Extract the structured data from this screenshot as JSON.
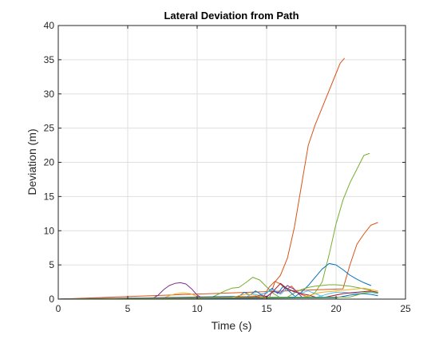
{
  "chart_data": {
    "type": "line",
    "title": "Lateral Deviation from Path",
    "xlabel": "Time (s)",
    "ylabel": "Deviation (m)",
    "xlim": [
      0,
      25
    ],
    "ylim": [
      0,
      40
    ],
    "xticks": [
      0,
      5,
      10,
      15,
      20,
      25
    ],
    "yticks": [
      0,
      5,
      10,
      15,
      20,
      25,
      30,
      35,
      40
    ],
    "xtick_labels": [
      "0",
      "5",
      "10",
      "15",
      "20",
      "25"
    ],
    "ytick_labels": [
      "0",
      "5",
      "10",
      "15",
      "20",
      "25",
      "30",
      "35",
      "40"
    ],
    "grid": true,
    "legend": "none",
    "series": [
      {
        "color": "#D95319",
        "x": [
          0,
          15.2,
          15.6,
          16.0,
          16.5,
          17.0,
          17.5,
          18.0,
          18.5,
          19.0,
          19.5,
          20.0,
          20.3,
          20.6
        ],
        "y": [
          0,
          0.2,
          2.5,
          3.5,
          6.0,
          10.5,
          16.5,
          22.5,
          25.5,
          28.0,
          30.5,
          33.0,
          34.5,
          35.2
        ]
      },
      {
        "color": "#77AC30",
        "x": [
          0,
          18.0,
          18.5,
          19.0,
          19.5,
          20.0,
          20.5,
          21.0,
          21.5,
          22.0,
          22.4
        ],
        "y": [
          0,
          0.3,
          1.0,
          2.5,
          6.5,
          11.0,
          14.5,
          17.0,
          19.0,
          21.0,
          21.3
        ]
      },
      {
        "color": "#D95319",
        "x": [
          0,
          20.5,
          21.0,
          21.5,
          22.0,
          22.5,
          23.0
        ],
        "y": [
          0,
          1.5,
          5.0,
          8.0,
          9.5,
          10.8,
          11.2
        ]
      },
      {
        "color": "#0072BD",
        "x": [
          0,
          17.0,
          17.5,
          18.0,
          18.5,
          19.0,
          19.5,
          20.0,
          20.5,
          21.0,
          21.5,
          22.0,
          22.5
        ],
        "y": [
          0,
          0.3,
          1.0,
          2.0,
          3.2,
          4.4,
          5.2,
          5.0,
          4.3,
          3.5,
          2.9,
          2.4,
          2.0
        ]
      },
      {
        "color": "#7E2F8E",
        "x": [
          0,
          6.8,
          7.2,
          7.6,
          8.0,
          8.4,
          8.8,
          9.2,
          9.6,
          10.0,
          10.4
        ],
        "y": [
          0,
          0.1,
          0.6,
          1.4,
          2.0,
          2.3,
          2.4,
          2.2,
          1.5,
          0.6,
          0.1
        ]
      },
      {
        "color": "#77AC30",
        "x": [
          0,
          11.0,
          11.5,
          12.0,
          12.5,
          13.0,
          13.5,
          14.0,
          14.5,
          15.0,
          15.5,
          16.0
        ],
        "y": [
          0,
          0.2,
          0.7,
          1.2,
          1.6,
          1.7,
          2.4,
          3.2,
          2.8,
          1.8,
          0.8,
          0.2
        ]
      },
      {
        "color": "#EDB120",
        "x": [
          0,
          7.5,
          8.0,
          8.5,
          9.0,
          9.5,
          10.0,
          10.5
        ],
        "y": [
          0,
          0.1,
          0.5,
          0.8,
          0.9,
          0.8,
          0.4,
          0.1
        ]
      },
      {
        "color": "#77AC30",
        "x": [
          0,
          16.5,
          17.0,
          17.5,
          18.0,
          18.5,
          19.0,
          19.5,
          20.0,
          20.5,
          21.0,
          21.5,
          22.0,
          22.5
        ],
        "y": [
          0,
          0.3,
          0.9,
          1.4,
          1.7,
          1.9,
          2.0,
          2.1,
          2.1,
          2.0,
          1.9,
          1.7,
          1.5,
          1.3
        ]
      },
      {
        "color": "#D95319",
        "x": [
          0,
          14.8,
          15.2,
          15.6,
          16.0,
          16.4,
          16.8,
          17.2,
          17.6,
          18.0
        ],
        "y": [
          0,
          0.4,
          1.8,
          2.6,
          2.2,
          1.4,
          1.9,
          1.0,
          0.6,
          0.3
        ]
      },
      {
        "color": "#0072BD",
        "x": [
          0,
          13.0,
          13.4,
          13.8,
          14.2,
          14.6,
          15.0,
          15.4,
          15.8,
          16.2,
          16.6,
          17.0
        ],
        "y": [
          0,
          0.4,
          1.0,
          0.6,
          1.2,
          0.7,
          0.9,
          1.6,
          0.8,
          1.9,
          1.2,
          0.5
        ]
      },
      {
        "color": "#4DBEEE",
        "x": [
          0,
          13.5,
          14.0,
          14.5,
          15.0,
          15.5,
          16.0,
          16.5,
          17.0,
          17.5,
          18.0,
          18.5,
          19.0
        ],
        "y": [
          0,
          0.3,
          0.8,
          0.5,
          1.0,
          1.4,
          0.7,
          1.6,
          1.0,
          0.9,
          1.2,
          0.8,
          0.4
        ]
      },
      {
        "color": "#A2142F",
        "x": [
          0,
          15.0,
          15.5,
          16.0,
          16.5,
          17.0,
          17.5,
          18.0,
          18.5
        ],
        "y": [
          0,
          0.3,
          1.2,
          2.3,
          1.5,
          1.1,
          0.8,
          0.6,
          0.3
        ]
      },
      {
        "color": "#7E2F8E",
        "x": [
          0,
          14.0,
          14.5,
          15.0,
          15.5,
          16.0,
          16.5,
          17.0,
          17.5
        ],
        "y": [
          0,
          0.2,
          0.6,
          0.4,
          1.1,
          0.9,
          2.0,
          1.4,
          0.4
        ]
      },
      {
        "color": "#EDB120",
        "x": [
          0,
          17.5,
          18.0,
          18.5,
          19.0,
          19.5,
          20.0,
          20.5,
          21.0,
          21.5,
          22.0,
          22.5,
          23.0
        ],
        "y": [
          0,
          0.2,
          0.5,
          0.8,
          1.0,
          1.1,
          1.2,
          1.3,
          1.4,
          1.5,
          1.6,
          1.4,
          1.2
        ]
      },
      {
        "color": "#4DBEEE",
        "x": [
          0,
          18.5,
          19.0,
          19.5,
          20.0,
          20.5,
          21.0,
          21.5,
          22.0,
          22.5,
          23.0
        ],
        "y": [
          0,
          0.2,
          0.5,
          0.8,
          1.0,
          1.0,
          0.9,
          0.8,
          0.9,
          1.0,
          0.8
        ]
      },
      {
        "color": "#A2142F",
        "x": [
          0,
          19.0,
          19.5,
          20.0,
          20.5,
          21.0,
          21.5,
          22.0,
          22.5,
          23.0
        ],
        "y": [
          0,
          0.2,
          0.4,
          0.6,
          0.8,
          0.9,
          1.0,
          1.1,
          1.2,
          1.0
        ]
      },
      {
        "color": "#0072BD",
        "x": [
          0,
          20.0,
          20.5,
          21.0,
          21.5,
          22.0,
          22.5,
          23.0
        ],
        "y": [
          0,
          0.2,
          0.4,
          0.6,
          0.7,
          0.8,
          0.7,
          0.5
        ]
      },
      {
        "color": "#EDB120",
        "x": [
          0,
          12.5,
          13.0,
          13.5,
          14.0,
          14.5,
          15.0
        ],
        "y": [
          0,
          0.2,
          0.5,
          0.7,
          0.6,
          0.4,
          0.1
        ]
      },
      {
        "color": "#77AC30",
        "x": [
          0,
          21.0,
          21.5,
          22.0,
          22.5,
          23.0
        ],
        "y": [
          0,
          0.3,
          0.6,
          0.9,
          1.1,
          0.9
        ]
      }
    ]
  }
}
